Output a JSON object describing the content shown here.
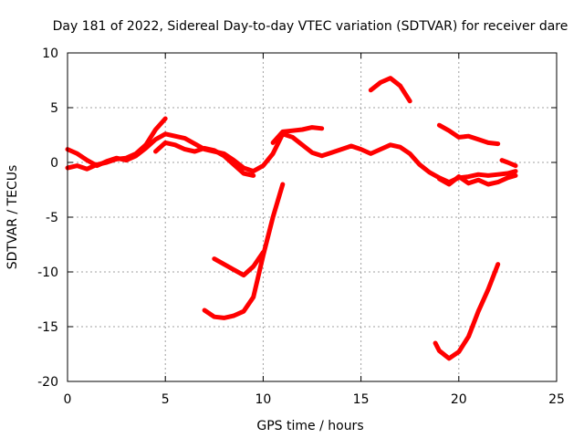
{
  "chart_data": {
    "type": "line",
    "title": "Day 181 of 2022, Sidereal Day-to-day VTEC variation (SDTVAR) for receiver dare",
    "xlabel": "GPS time / hours",
    "ylabel": "SDTVAR / TECUs",
    "xlim": [
      0,
      25
    ],
    "ylim": [
      -20,
      10
    ],
    "xticks": [
      0,
      5,
      10,
      15,
      20,
      25
    ],
    "yticks": [
      -20,
      -15,
      -10,
      -5,
      0,
      5,
      10
    ],
    "grid": true,
    "color": "#ff0000",
    "series": [
      {
        "name": "trace-1",
        "x": [
          0,
          0.5,
          1,
          1.5,
          2,
          2.5,
          3,
          3.5,
          4,
          4.5,
          5,
          5.5,
          6,
          6.5,
          7,
          7.5,
          8,
          8.5,
          9,
          9.5,
          10,
          10.5,
          11,
          11.5,
          12,
          12.5,
          13,
          13.5,
          14,
          14.5,
          15,
          15.5,
          16,
          16.5,
          17,
          17.5,
          18,
          18.5,
          19,
          19.5,
          20,
          20.5,
          21,
          21.5,
          22,
          22.5,
          22.9
        ],
        "y": [
          1.2,
          0.8,
          0.2,
          -0.3,
          0.1,
          0.4,
          0.2,
          0.6,
          1.3,
          2.1,
          2.6,
          2.4,
          2.2,
          1.7,
          1.2,
          1.0,
          0.8,
          0.2,
          -0.5,
          -0.8,
          -0.3,
          0.8,
          2.6,
          2.3,
          1.6,
          0.9,
          0.6,
          0.9,
          1.2,
          1.5,
          1.2,
          0.8,
          1.2,
          1.6,
          1.4,
          0.8,
          -0.2,
          -0.9,
          -1.4,
          -1.8,
          -1.4,
          -1.3,
          -1.1,
          -1.2,
          -1.1,
          -1.0,
          -0.8
        ]
      },
      {
        "name": "trace-2",
        "x": [
          0,
          0.5,
          1,
          1.5,
          2,
          2.5,
          3,
          3.5,
          4,
          4.5,
          5
        ],
        "y": [
          -0.5,
          -0.3,
          -0.6,
          -0.2,
          0.0,
          0.3,
          0.4,
          0.8,
          1.6,
          3.0,
          4.0
        ]
      },
      {
        "name": "trace-3",
        "x": [
          4.5,
          5,
          5.5,
          6,
          6.5,
          7,
          7.5,
          8,
          8.5,
          9,
          9.5
        ],
        "y": [
          1.0,
          1.8,
          1.6,
          1.2,
          1.0,
          1.3,
          1.1,
          0.6,
          -0.2,
          -1.0,
          -1.2
        ]
      },
      {
        "name": "trace-4",
        "x": [
          10.5,
          11,
          11.5,
          12,
          12.5,
          13
        ],
        "y": [
          1.8,
          2.8,
          2.9,
          3.0,
          3.2,
          3.1
        ]
      },
      {
        "name": "trace-5",
        "x": [
          15.5,
          16,
          16.5,
          17,
          17.5
        ],
        "y": [
          6.6,
          7.3,
          7.7,
          7.0,
          5.6
        ]
      },
      {
        "name": "trace-6",
        "x": [
          19,
          19.5,
          20,
          20.5,
          21,
          21.5,
          22
        ],
        "y": [
          3.4,
          2.9,
          2.3,
          2.4,
          2.1,
          1.8,
          1.7
        ]
      },
      {
        "name": "trace-7",
        "x": [
          19,
          19.5,
          20,
          20.5,
          21,
          21.5,
          22,
          22.5,
          22.9
        ],
        "y": [
          -1.5,
          -2.0,
          -1.3,
          -1.9,
          -1.6,
          -2.0,
          -1.8,
          -1.4,
          -1.2
        ]
      },
      {
        "name": "trace-8",
        "x": [
          22.2,
          22.5,
          22.9
        ],
        "y": [
          0.2,
          0.0,
          -0.3
        ]
      },
      {
        "name": "trace-9",
        "x": [
          7.5,
          8,
          8.5,
          9,
          9.5,
          10
        ],
        "y": [
          -8.8,
          -9.3,
          -9.8,
          -10.3,
          -9.5,
          -8.2
        ]
      },
      {
        "name": "trace-10",
        "x": [
          7,
          7.5,
          8,
          8.5,
          9,
          9.5,
          10,
          10.5,
          11
        ],
        "y": [
          -13.5,
          -14.1,
          -14.2,
          -14.0,
          -13.6,
          -12.3,
          -8.5,
          -5.0,
          -2.0
        ]
      },
      {
        "name": "trace-11",
        "x": [
          18.8,
          19,
          19.5,
          20,
          20.5,
          21,
          21.5,
          22
        ],
        "y": [
          -16.5,
          -17.2,
          -17.9,
          -17.3,
          -15.9,
          -13.6,
          -11.6,
          -9.3
        ]
      }
    ]
  }
}
